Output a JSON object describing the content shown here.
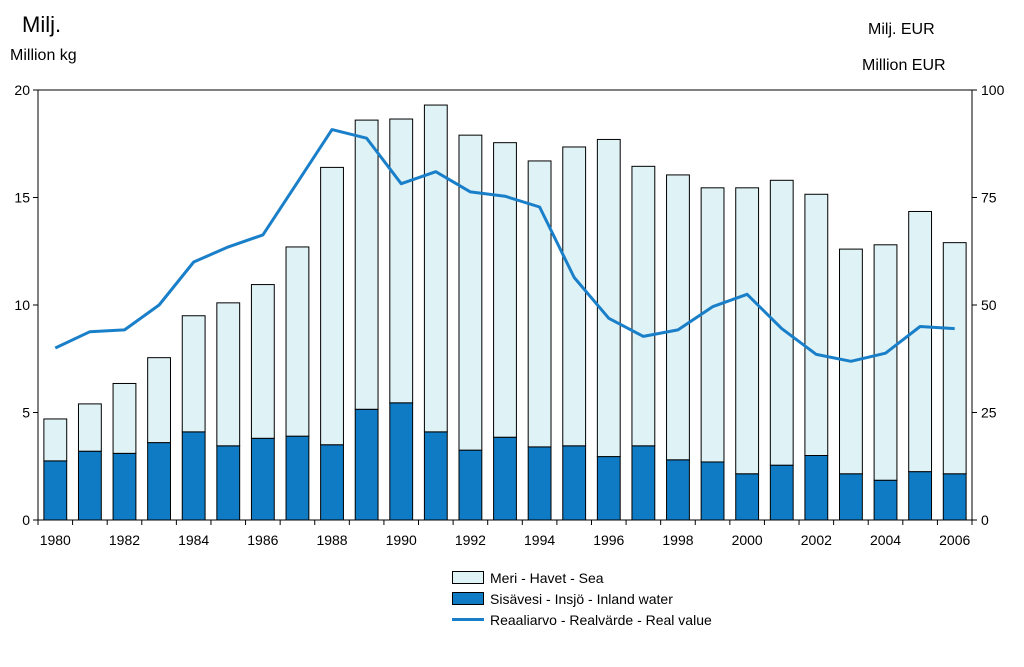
{
  "chart_data": {
    "type": "bar+line",
    "axis_titles": {
      "left_line1": "Milj.",
      "left_line2": "Million kg",
      "right_line1": "Milj. EUR",
      "right_line2": "Million EUR"
    },
    "x": [
      1980,
      1981,
      1982,
      1983,
      1984,
      1985,
      1986,
      1987,
      1988,
      1989,
      1990,
      1991,
      1992,
      1993,
      1994,
      1995,
      1996,
      1997,
      1998,
      1999,
      2000,
      2001,
      2002,
      2003,
      2004,
      2005,
      2006
    ],
    "x_tick_labels": [
      "1980",
      "1982",
      "1984",
      "1986",
      "1988",
      "1990",
      "1992",
      "1994",
      "1996",
      "1998",
      "2000",
      "2002",
      "2004",
      "2006"
    ],
    "left_axis": {
      "ylim": [
        0,
        20
      ],
      "ticks": [
        0,
        5,
        10,
        15,
        20
      ]
    },
    "right_axis": {
      "ylim": [
        0,
        100
      ],
      "ticks": [
        0,
        25,
        50,
        75,
        100
      ]
    },
    "series": [
      {
        "name": "Sisävesi  - Insjö - Inland water",
        "type": "bar-stacked",
        "axis": "left",
        "color": "#0f7bc4",
        "values": [
          2.75,
          3.2,
          3.1,
          3.6,
          4.1,
          3.45,
          3.8,
          3.9,
          3.5,
          5.15,
          5.45,
          4.1,
          3.25,
          3.85,
          3.4,
          3.45,
          2.95,
          3.45,
          2.8,
          2.7,
          2.15,
          2.55,
          3.0,
          2.15,
          1.85,
          2.25,
          2.15
        ]
      },
      {
        "name": "Meri  - Havet - Sea",
        "type": "bar-stacked",
        "axis": "left",
        "color": "#dff2f6",
        "values": [
          1.95,
          2.2,
          3.25,
          3.95,
          5.4,
          6.65,
          7.15,
          8.8,
          12.9,
          13.45,
          13.2,
          15.2,
          14.65,
          13.7,
          13.3,
          13.9,
          14.75,
          13.0,
          13.25,
          12.75,
          13.3,
          13.25,
          12.15,
          10.45,
          10.95,
          12.1,
          10.75
        ]
      },
      {
        "name": "Reaaliarvo  - Realvärde  - Real value",
        "type": "line",
        "axis": "right",
        "color": "#1a7fc9",
        "values": [
          40,
          43.8,
          44.2,
          50,
          60,
          63.5,
          66.3,
          78.5,
          90.8,
          88.8,
          78.2,
          81,
          76.3,
          75.3,
          72.8,
          56.4,
          46.9,
          42.7,
          44.2,
          49.6,
          52.5,
          44.5,
          38.5,
          36.9,
          38.8,
          45,
          44.5
        ]
      }
    ],
    "legend": {
      "position": "bottom-center",
      "items": [
        "Meri  - Havet - Sea",
        "Sisävesi  - Insjö - Inland water",
        "Reaaliarvo  - Realvärde  - Real value"
      ]
    },
    "grid": false
  }
}
